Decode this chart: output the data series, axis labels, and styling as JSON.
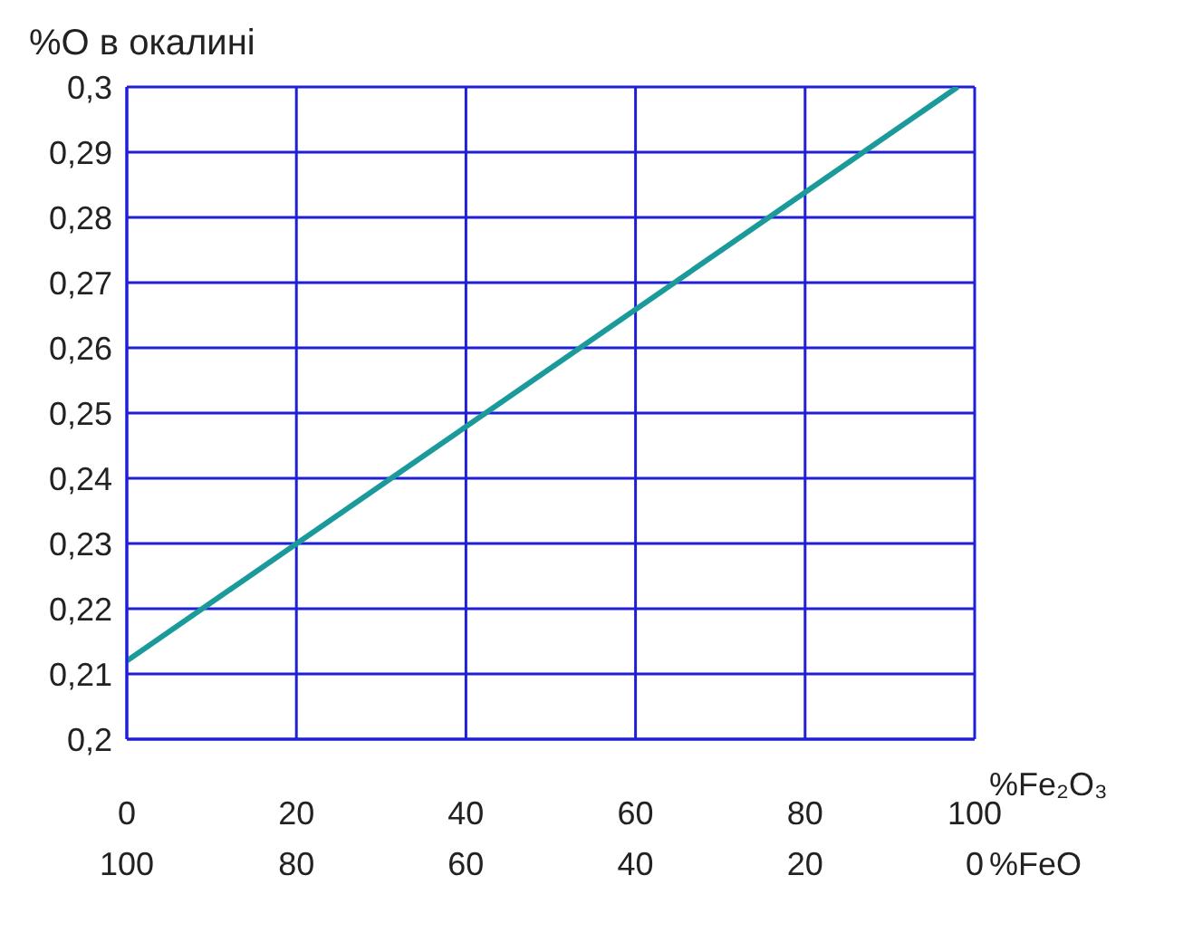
{
  "chart_data": {
    "type": "line",
    "ylabel": "%O в окалині",
    "xlabel": "%Fe₂O₃",
    "x2label": "%FeO",
    "x": [
      0,
      98
    ],
    "series": [
      {
        "color": "#1a9a9a",
        "values": [
          0.212,
          0.3
        ]
      }
    ],
    "xlim": [
      0,
      100
    ],
    "xticks": [
      0,
      20,
      40,
      60,
      80,
      100
    ],
    "x2lim": [
      100,
      0
    ],
    "x2ticks": [
      100,
      80,
      60,
      40,
      20,
      0
    ],
    "ylim": [
      0.2,
      0.3
    ],
    "yticks": [
      {
        "value": 0.2,
        "label": "0,2"
      },
      {
        "value": 0.21,
        "label": "0,21"
      },
      {
        "value": 0.22,
        "label": "0,22"
      },
      {
        "value": 0.23,
        "label": "0,23"
      },
      {
        "value": 0.24,
        "label": "0,24"
      },
      {
        "value": 0.25,
        "label": "0,25"
      },
      {
        "value": 0.26,
        "label": "0,26"
      },
      {
        "value": 0.27,
        "label": "0,27"
      },
      {
        "value": 0.28,
        "label": "0,28"
      },
      {
        "value": 0.29,
        "label": "0,29"
      },
      {
        "value": 0.3,
        "label": "0,3"
      }
    ],
    "grid": true,
    "marker": "none",
    "line_style": "solid",
    "legend": false
  }
}
